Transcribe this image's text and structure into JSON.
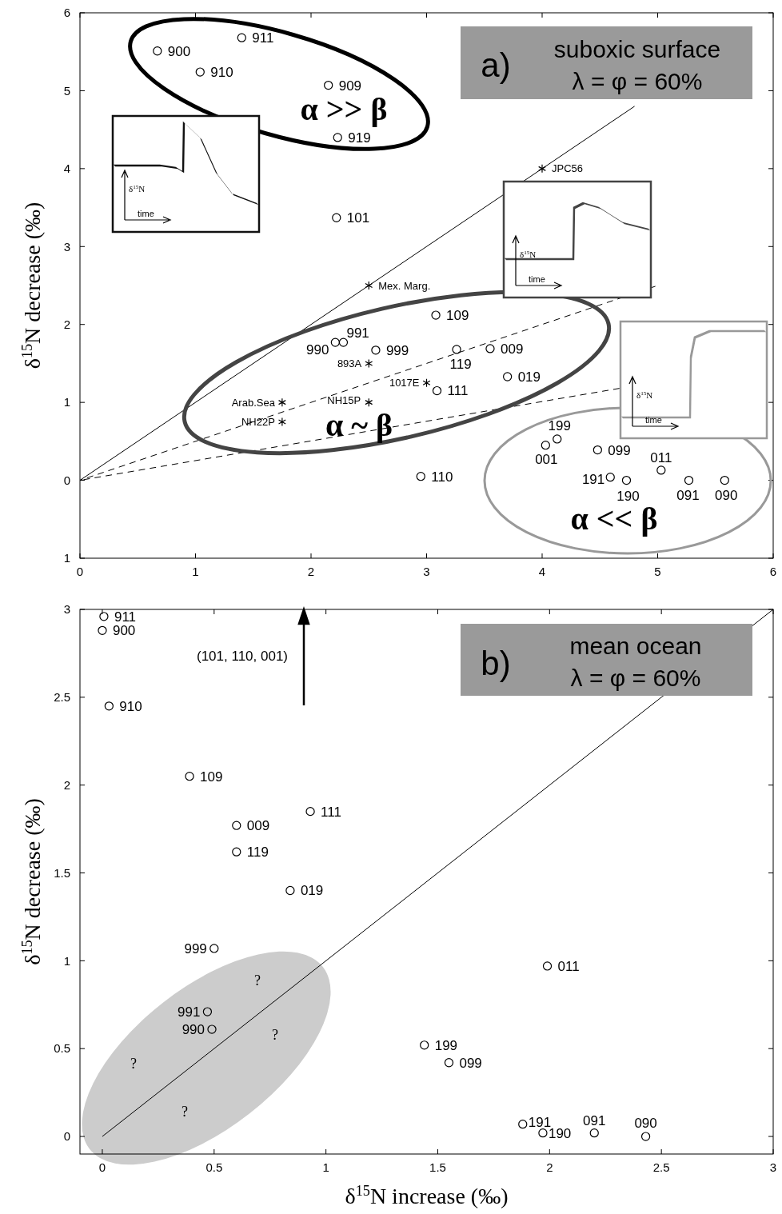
{
  "chart_data": [
    {
      "type": "scatter",
      "ylabel": "δ$^{15}$N decrease (‰)",
      "xlim": [
        0,
        6
      ],
      "xticks": [
        0,
        1,
        2,
        3,
        4,
        5,
        6
      ],
      "ylim": [
        -1,
        6
      ],
      "yticks": [
        {
          "value": -1,
          "label": "1"
        },
        0,
        1,
        2,
        3,
        4,
        5,
        6
      ],
      "series": [
        {
          "marker": "circle",
          "color": "#000000",
          "x": [
            0.67,
            1.4,
            1.04,
            2.15,
            2.23,
            2.22,
            3.08,
            2.21,
            2.28,
            2.56,
            3.26,
            3.55,
            3.7,
            3.09,
            2.95,
            4.13,
            4.03,
            4.48,
            5.03,
            4.59,
            4.73,
            5.27,
            5.58
          ],
          "values": [
            5.51,
            5.68,
            5.24,
            5.07,
            4.4,
            3.37,
            2.12,
            1.77,
            1.77,
            1.67,
            1.68,
            1.69,
            1.33,
            1.15,
            0.05,
            0.53,
            0.45,
            0.39,
            0.13,
            0.04,
            0.0,
            0.0,
            0.0
          ]
        },
        {
          "marker": "cross",
          "color": "#000000",
          "x": [
            4,
            2.5,
            2.5,
            3,
            2.5,
            1.75,
            1.75
          ],
          "values": [
            4,
            2.5,
            1.5,
            1.25,
            1,
            1,
            0.75
          ]
        },
        {
          "type": "line",
          "line_style": "solid",
          "color": "#000000",
          "x": [
            0,
            4.8
          ],
          "values": [
            0,
            4.8
          ]
        },
        {
          "type": "line",
          "line_style": "dashed",
          "color": "#000000",
          "x": [
            0,
            4.98
          ],
          "values": [
            0,
            2.49
          ]
        },
        {
          "type": "line",
          "line_style": "dashed",
          "color": "#000000",
          "x": [
            0,
            4.67
          ],
          "values": [
            0,
            1.18
          ]
        }
      ],
      "annotations": [
        "a)",
        "suboxic surface",
        "λ = φ = 60%",
        "δ$^{15}$N",
        "time",
        "δ$^{15}$N",
        "time",
        "δ$^{15}$N",
        "time",
        "α >> β",
        "α ~ β",
        "α << β",
        {
          "text": "900",
          "x": 0.67,
          "y": 5.51
        },
        {
          "text": "911",
          "x": 1.4,
          "y": 5.68
        },
        {
          "text": "910",
          "x": 1.04,
          "y": 5.24
        },
        {
          "text": "909",
          "x": 2.15,
          "y": 5.07
        },
        {
          "text": "919",
          "x": 2.23,
          "y": 4.4
        },
        {
          "text": "101",
          "x": 2.22,
          "y": 3.37
        },
        {
          "text": "109",
          "x": 3.08,
          "y": 2.12
        },
        {
          "text": "990",
          "x": 2.21,
          "y": 1.77
        },
        {
          "text": "991",
          "x": 2.28,
          "y": 1.77
        },
        {
          "text": "999",
          "x": 2.56,
          "y": 1.67
        },
        {
          "text": "119",
          "x": 3.26,
          "y": 1.68
        },
        {
          "text": "009",
          "x": 3.55,
          "y": 1.69
        },
        {
          "text": "019",
          "x": 3.7,
          "y": 1.33
        },
        {
          "text": "111",
          "x": 3.09,
          "y": 1.15
        },
        {
          "text": "110",
          "x": 2.95,
          "y": 0.05
        },
        {
          "text": "199",
          "x": 4.13,
          "y": 0.53
        },
        {
          "text": "001",
          "x": 4.03,
          "y": 0.45
        },
        {
          "text": "099",
          "x": 4.48,
          "y": 0.39
        },
        {
          "text": "011",
          "x": 5.03,
          "y": 0.13
        },
        {
          "text": "191",
          "x": 4.59,
          "y": 0.04
        },
        {
          "text": "190",
          "x": 4.73,
          "y": 0.0
        },
        {
          "text": "091",
          "x": 5.27,
          "y": 0.0
        },
        {
          "text": "090",
          "x": 5.58,
          "y": 0.0
        },
        {
          "text": "JPC56",
          "x": 4,
          "y": 4
        },
        {
          "text": "Mex. Marg.",
          "x": 2.5,
          "y": 2.5
        },
        {
          "text": "893A",
          "x": 2.5,
          "y": 1.5
        },
        {
          "text": "1017E",
          "x": 3,
          "y": 1.25
        },
        {
          "text": "NH15P",
          "x": 2.5,
          "y": 1
        },
        {
          "text": "Arab.Sea",
          "x": 1.75,
          "y": 1
        },
        {
          "text": "NH22P",
          "x": 1.75,
          "y": 0.75
        }
      ]
    },
    {
      "type": "scatter",
      "xlabel": "δ$^{15}$N increase (‰)",
      "ylabel": "δ$^{15}$N decrease (‰)",
      "xlim": [
        -0.1,
        3
      ],
      "xticks": [
        0,
        0.5,
        1,
        1.5,
        2,
        2.5,
        3
      ],
      "ylim": [
        -0.1,
        3
      ],
      "yticks": [
        0,
        0.5,
        1,
        1.5,
        2,
        2.5,
        3
      ],
      "series": [
        {
          "marker": "circle",
          "color": "#000000",
          "x": [
            0.007,
            0,
            0.03,
            0.39,
            0.6,
            0.6,
            0.93,
            0.84,
            0.5,
            0.47,
            0.49,
            1.99,
            1.44,
            1.55,
            1.88,
            1.97,
            2.2,
            2.43
          ],
          "values": [
            2.96,
            2.88,
            2.45,
            2.05,
            1.77,
            1.62,
            1.85,
            1.4,
            1.07,
            0.71,
            0.61,
            0.97,
            0.52,
            0.42,
            0.07,
            0.02,
            0.02,
            0.0
          ]
        },
        {
          "type": "line",
          "line_style": "solid",
          "color": "#000000",
          "x": [
            0,
            3
          ],
          "values": [
            0,
            3
          ]
        }
      ],
      "annotations": [
        "b)",
        "mean ocean",
        "λ = φ = 60%",
        "(101, 110, 001)",
        "?",
        "?",
        "?",
        "?",
        {
          "text": "911",
          "x": 0.007,
          "y": 2.96
        },
        {
          "text": "900",
          "x": 0,
          "y": 2.88
        },
        {
          "text": "910",
          "x": 0.03,
          "y": 2.45
        },
        {
          "text": "109",
          "x": 0.39,
          "y": 2.05
        },
        {
          "text": "009",
          "x": 0.6,
          "y": 1.77
        },
        {
          "text": "119",
          "x": 0.6,
          "y": 1.62
        },
        {
          "text": "111",
          "x": 0.93,
          "y": 1.85
        },
        {
          "text": "019",
          "x": 0.84,
          "y": 1.4
        },
        {
          "text": "999",
          "x": 0.5,
          "y": 1.07
        },
        {
          "text": "991",
          "x": 0.47,
          "y": 0.71
        },
        {
          "text": "990",
          "x": 0.49,
          "y": 0.61
        },
        {
          "text": "011",
          "x": 1.99,
          "y": 0.97
        },
        {
          "text": "199",
          "x": 1.44,
          "y": 0.52
        },
        {
          "text": "099",
          "x": 1.55,
          "y": 0.42
        },
        {
          "text": "191",
          "x": 1.88,
          "y": 0.07
        },
        {
          "text": "190",
          "x": 1.97,
          "y": 0.02
        },
        {
          "text": "091",
          "x": 2.2,
          "y": 0.02
        },
        {
          "text": "090",
          "x": 2.43,
          "y": 0.0
        }
      ]
    }
  ]
}
